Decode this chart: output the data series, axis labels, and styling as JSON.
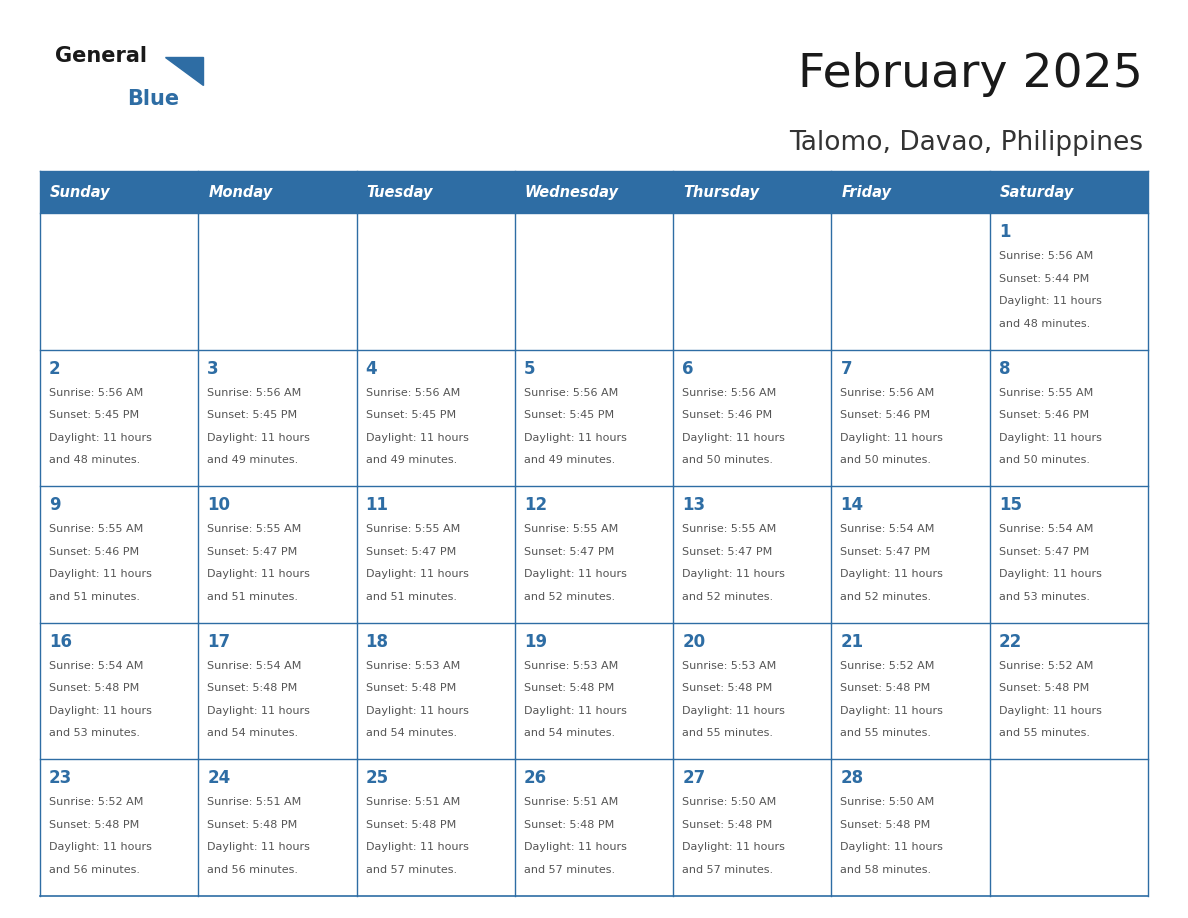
{
  "title": "February 2025",
  "subtitle": "Talomo, Davao, Philippines",
  "days_of_week": [
    "Sunday",
    "Monday",
    "Tuesday",
    "Wednesday",
    "Thursday",
    "Friday",
    "Saturday"
  ],
  "header_bg": "#2E6DA4",
  "header_text": "#FFFFFF",
  "border_color": "#2E6DA4",
  "day_number_color": "#2E6DA4",
  "text_color": "#555555",
  "logo_general_color": "#1a1a1a",
  "logo_blue_color": "#2E6DA4",
  "logo_triangle_color": "#2E6DA4",
  "calendar_data": [
    [
      null,
      null,
      null,
      null,
      null,
      null,
      {
        "day": 1,
        "sunrise": "5:56 AM",
        "sunset": "5:44 PM",
        "daylight": "11 hours and 48 minutes."
      }
    ],
    [
      {
        "day": 2,
        "sunrise": "5:56 AM",
        "sunset": "5:45 PM",
        "daylight": "11 hours and 48 minutes."
      },
      {
        "day": 3,
        "sunrise": "5:56 AM",
        "sunset": "5:45 PM",
        "daylight": "11 hours and 49 minutes."
      },
      {
        "day": 4,
        "sunrise": "5:56 AM",
        "sunset": "5:45 PM",
        "daylight": "11 hours and 49 minutes."
      },
      {
        "day": 5,
        "sunrise": "5:56 AM",
        "sunset": "5:45 PM",
        "daylight": "11 hours and 49 minutes."
      },
      {
        "day": 6,
        "sunrise": "5:56 AM",
        "sunset": "5:46 PM",
        "daylight": "11 hours and 50 minutes."
      },
      {
        "day": 7,
        "sunrise": "5:56 AM",
        "sunset": "5:46 PM",
        "daylight": "11 hours and 50 minutes."
      },
      {
        "day": 8,
        "sunrise": "5:55 AM",
        "sunset": "5:46 PM",
        "daylight": "11 hours and 50 minutes."
      }
    ],
    [
      {
        "day": 9,
        "sunrise": "5:55 AM",
        "sunset": "5:46 PM",
        "daylight": "11 hours and 51 minutes."
      },
      {
        "day": 10,
        "sunrise": "5:55 AM",
        "sunset": "5:47 PM",
        "daylight": "11 hours and 51 minutes."
      },
      {
        "day": 11,
        "sunrise": "5:55 AM",
        "sunset": "5:47 PM",
        "daylight": "11 hours and 51 minutes."
      },
      {
        "day": 12,
        "sunrise": "5:55 AM",
        "sunset": "5:47 PM",
        "daylight": "11 hours and 52 minutes."
      },
      {
        "day": 13,
        "sunrise": "5:55 AM",
        "sunset": "5:47 PM",
        "daylight": "11 hours and 52 minutes."
      },
      {
        "day": 14,
        "sunrise": "5:54 AM",
        "sunset": "5:47 PM",
        "daylight": "11 hours and 52 minutes."
      },
      {
        "day": 15,
        "sunrise": "5:54 AM",
        "sunset": "5:47 PM",
        "daylight": "11 hours and 53 minutes."
      }
    ],
    [
      {
        "day": 16,
        "sunrise": "5:54 AM",
        "sunset": "5:48 PM",
        "daylight": "11 hours and 53 minutes."
      },
      {
        "day": 17,
        "sunrise": "5:54 AM",
        "sunset": "5:48 PM",
        "daylight": "11 hours and 54 minutes."
      },
      {
        "day": 18,
        "sunrise": "5:53 AM",
        "sunset": "5:48 PM",
        "daylight": "11 hours and 54 minutes."
      },
      {
        "day": 19,
        "sunrise": "5:53 AM",
        "sunset": "5:48 PM",
        "daylight": "11 hours and 54 minutes."
      },
      {
        "day": 20,
        "sunrise": "5:53 AM",
        "sunset": "5:48 PM",
        "daylight": "11 hours and 55 minutes."
      },
      {
        "day": 21,
        "sunrise": "5:52 AM",
        "sunset": "5:48 PM",
        "daylight": "11 hours and 55 minutes."
      },
      {
        "day": 22,
        "sunrise": "5:52 AM",
        "sunset": "5:48 PM",
        "daylight": "11 hours and 55 minutes."
      }
    ],
    [
      {
        "day": 23,
        "sunrise": "5:52 AM",
        "sunset": "5:48 PM",
        "daylight": "11 hours and 56 minutes."
      },
      {
        "day": 24,
        "sunrise": "5:51 AM",
        "sunset": "5:48 PM",
        "daylight": "11 hours and 56 minutes."
      },
      {
        "day": 25,
        "sunrise": "5:51 AM",
        "sunset": "5:48 PM",
        "daylight": "11 hours and 57 minutes."
      },
      {
        "day": 26,
        "sunrise": "5:51 AM",
        "sunset": "5:48 PM",
        "daylight": "11 hours and 57 minutes."
      },
      {
        "day": 27,
        "sunrise": "5:50 AM",
        "sunset": "5:48 PM",
        "daylight": "11 hours and 57 minutes."
      },
      {
        "day": 28,
        "sunrise": "5:50 AM",
        "sunset": "5:48 PM",
        "daylight": "11 hours and 58 minutes."
      },
      null
    ]
  ]
}
